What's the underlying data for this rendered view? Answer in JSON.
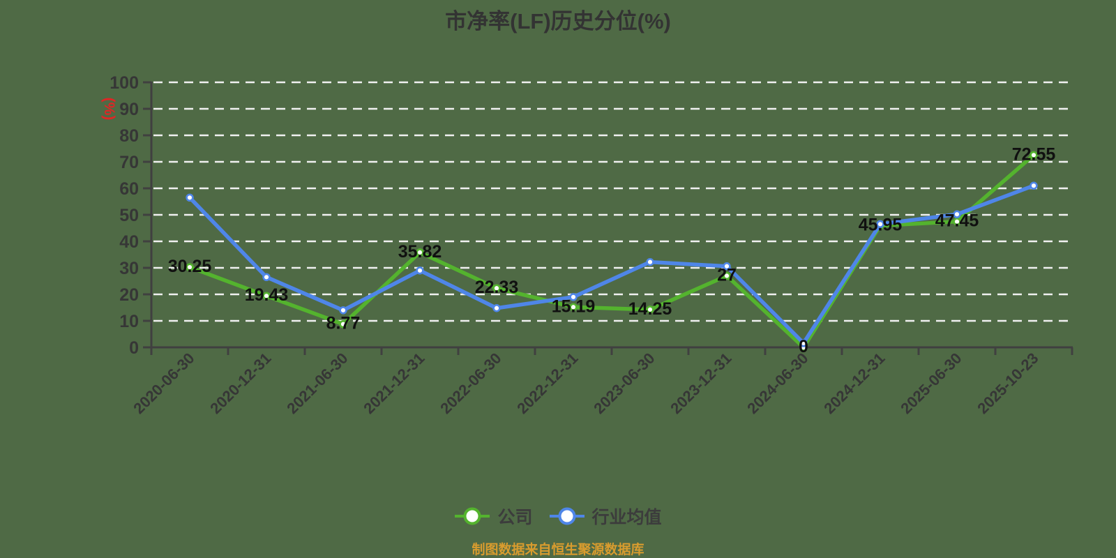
{
  "title": "市净率(LF)历史分位(%)",
  "source_note": "制图数据来自恒生聚源数据库",
  "colors": {
    "background": "#4f6a45",
    "company": "#54b32e",
    "industry": "#4f86e8",
    "grid": "#f0f0f0",
    "axis": "#404040",
    "data_label": "#101010",
    "tick_text": "#363636",
    "title_text": "#333333",
    "unit_text": "#e02525",
    "source_text": "#d99c2e"
  },
  "legend": [
    {
      "label": "公司"
    },
    {
      "label": "行业均值"
    }
  ],
  "chart_data": {
    "type": "line",
    "title": "市净率(LF)历史分位(%)",
    "ylabel": "(%)",
    "ylim": [
      0,
      100
    ],
    "ytick_step": 10,
    "grid": "horizontal-dashed",
    "legend_position": "bottom",
    "categories": [
      "2020-06-30",
      "2020-12-31",
      "2021-06-30",
      "2021-12-31",
      "2022-06-30",
      "2022-12-31",
      "2023-06-30",
      "2023-12-31",
      "2024-06-30",
      "2024-12-31",
      "2025-06-30",
      "2025-10-23"
    ],
    "series": [
      {
        "name": "公司",
        "color": "#54b32e",
        "values": [
          30.25,
          19.43,
          8.77,
          35.82,
          22.33,
          15.19,
          14.25,
          27,
          0,
          45.95,
          47.45,
          72.55
        ],
        "data_labels": [
          "30.25",
          "19.43",
          "8.77",
          "35.82",
          "22.33",
          "15.19",
          "14.25",
          "27",
          "0",
          "45.95",
          "47.45",
          "72.55"
        ]
      },
      {
        "name": "行业均值",
        "color": "#4f86e8",
        "values": [
          56.5,
          26.5,
          14,
          29,
          14.8,
          19,
          32.2,
          30.6,
          1.6,
          46.5,
          50.2,
          61
        ]
      }
    ]
  }
}
